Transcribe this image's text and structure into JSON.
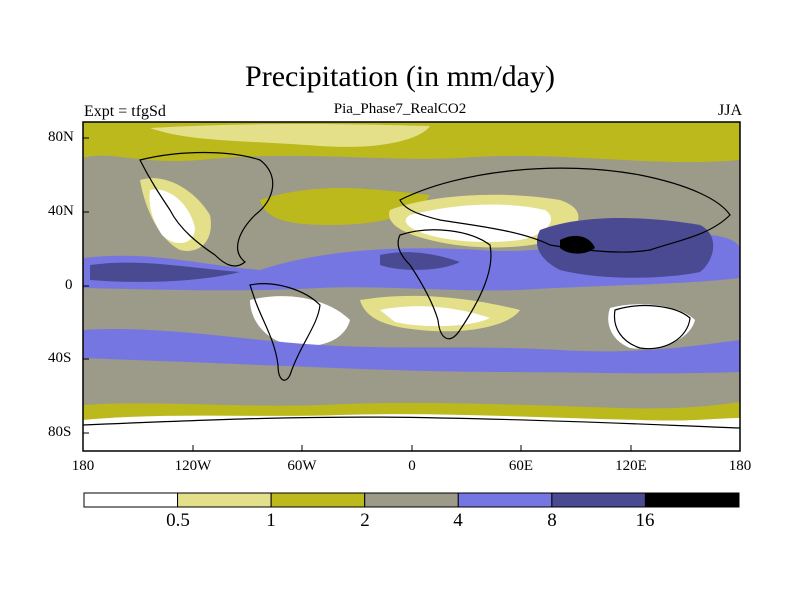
{
  "title": "Precipitation (in mm/day)",
  "left_label": "Expt = tfgSd",
  "center_label": "Pia_Phase7_RealCO2",
  "right_label": "JJA",
  "lat_ticks": [
    "80N",
    "40N",
    "0",
    "40S",
    "80S"
  ],
  "lon_ticks": [
    "180",
    "120W",
    "60W",
    "0",
    "60E",
    "120E",
    "180"
  ],
  "colorbar": {
    "colors": [
      "#ffffff",
      "#e4e08a",
      "#bcb91c",
      "#9c9a88",
      "#7676e2",
      "#4a4a92",
      "#000000"
    ],
    "labels": [
      "0.5",
      "1",
      "2",
      "4",
      "8",
      "16"
    ]
  }
}
